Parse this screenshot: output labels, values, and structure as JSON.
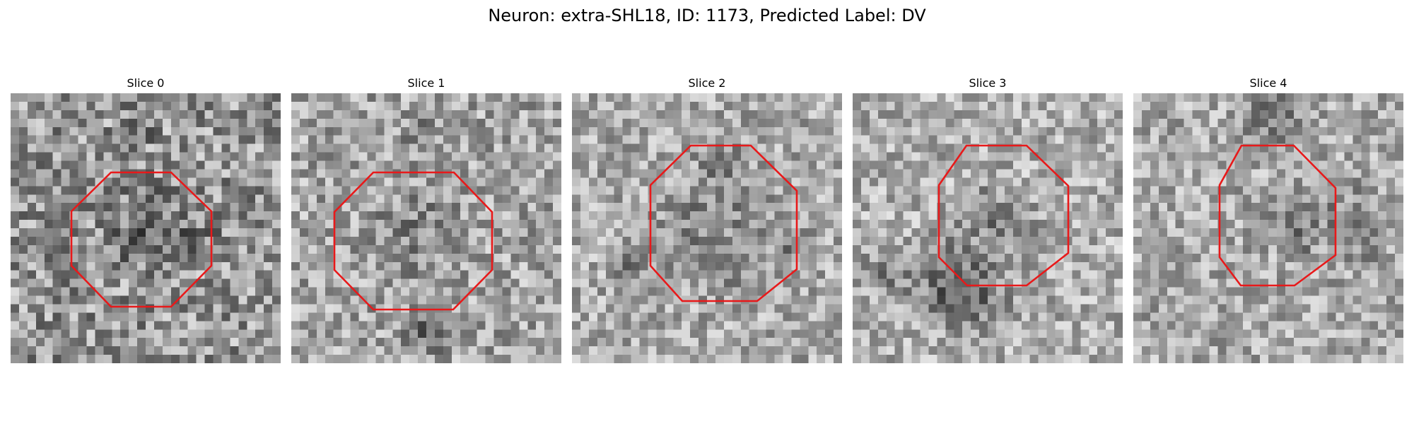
{
  "figure": {
    "title": "Neuron: extra-SHL18, ID: 1173, Predicted Label: DV"
  },
  "colors": {
    "roi_outline": "#e8191a",
    "background": "#ffffff"
  },
  "panels": [
    {
      "title": "Slice 0"
    },
    {
      "title": "Slice 1"
    },
    {
      "title": "Slice 2"
    },
    {
      "title": "Slice 3"
    },
    {
      "title": "Slice 4"
    }
  ]
}
